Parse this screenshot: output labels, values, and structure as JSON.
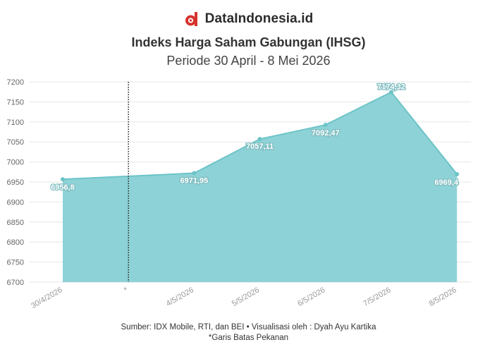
{
  "brand": {
    "name": "DataIndonesia.id",
    "logo_icon": "dataindonesia-logo-icon",
    "logo_color": "#d6322d"
  },
  "colors": {
    "area_fill": "#8dd2d6",
    "line": "#6cc4c8",
    "grid": "#e6e6e6"
  },
  "chart_data": {
    "type": "area",
    "title": "Indeks Harga Saham Gabungan (IHSG)",
    "subtitle": "Periode 30 April - 8 Mei 2026",
    "categories": [
      "30/4/2026",
      "*",
      "4/5/2026",
      "5/5/2026",
      "6/5/2026",
      "7/5/2026",
      "8/5/2026"
    ],
    "series": [
      {
        "values": [
          6956.8,
          null,
          6971.95,
          7057.11,
          7092.47,
          7174.32,
          6969.4
        ],
        "data_labels": [
          "6956,8",
          "",
          "6971,95",
          "7057,11",
          "7092,47",
          "7174,32",
          "6969,4"
        ]
      }
    ],
    "ylim": [
      6700,
      7200
    ],
    "yticks": [
      6700,
      6750,
      6800,
      6850,
      6900,
      6950,
      7000,
      7050,
      7100,
      7150,
      7200
    ],
    "grid": true,
    "legend": "none",
    "reference_line": {
      "category": "*",
      "style": "dotted"
    }
  },
  "footer": {
    "source": "Sumber: IDX Mobile, RTI, dan BEI • Visualisasi oleh : Dyah Ayu Kartika",
    "note": "*Garis Batas Pekanan"
  }
}
